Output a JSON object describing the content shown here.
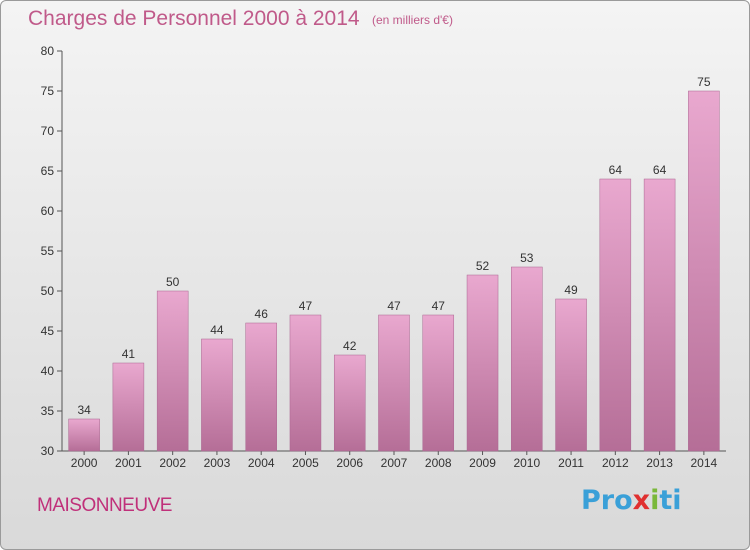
{
  "title": "Charges de Personnel 2000 à 2014",
  "subtitle": "(en milliers d'€)",
  "commune": "MAISONNEUVE",
  "logo": {
    "p1": "Pro",
    "p2": "x",
    "p3": "i",
    "p4": "ti"
  },
  "colors": {
    "bar_top": "#e9a8cf",
    "bar_bottom": "#b56e97",
    "title": "#c05a8a"
  },
  "chart_data": {
    "type": "bar",
    "categories": [
      "2000",
      "2001",
      "2002",
      "2003",
      "2004",
      "2005",
      "2006",
      "2007",
      "2008",
      "2009",
      "2010",
      "2011",
      "2012",
      "2013",
      "2014"
    ],
    "values": [
      34,
      41,
      50,
      44,
      46,
      47,
      42,
      47,
      47,
      52,
      53,
      49,
      64,
      64,
      75
    ],
    "ylim": [
      30,
      80
    ],
    "yticks": [
      30,
      35,
      40,
      45,
      50,
      55,
      60,
      65,
      70,
      75,
      80
    ],
    "grid": false
  }
}
